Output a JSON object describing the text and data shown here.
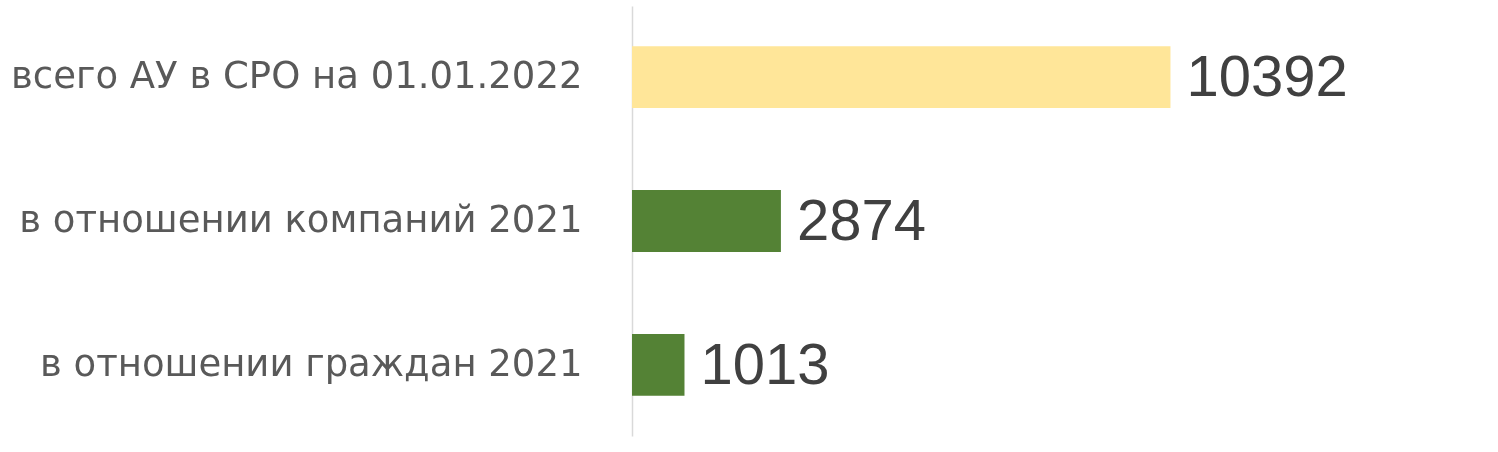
{
  "chart_data": {
    "type": "bar",
    "orientation": "horizontal",
    "categories": [
      "всего АУ в СРО на 01.01.2022",
      "в отношении компаний 2021",
      "в отношении граждан 2021"
    ],
    "values": [
      10392,
      2874,
      1013
    ],
    "colors": [
      "#ffe699",
      "#548235",
      "#548235"
    ],
    "data_labels": true,
    "tick_labels": "y",
    "grid": false
  }
}
